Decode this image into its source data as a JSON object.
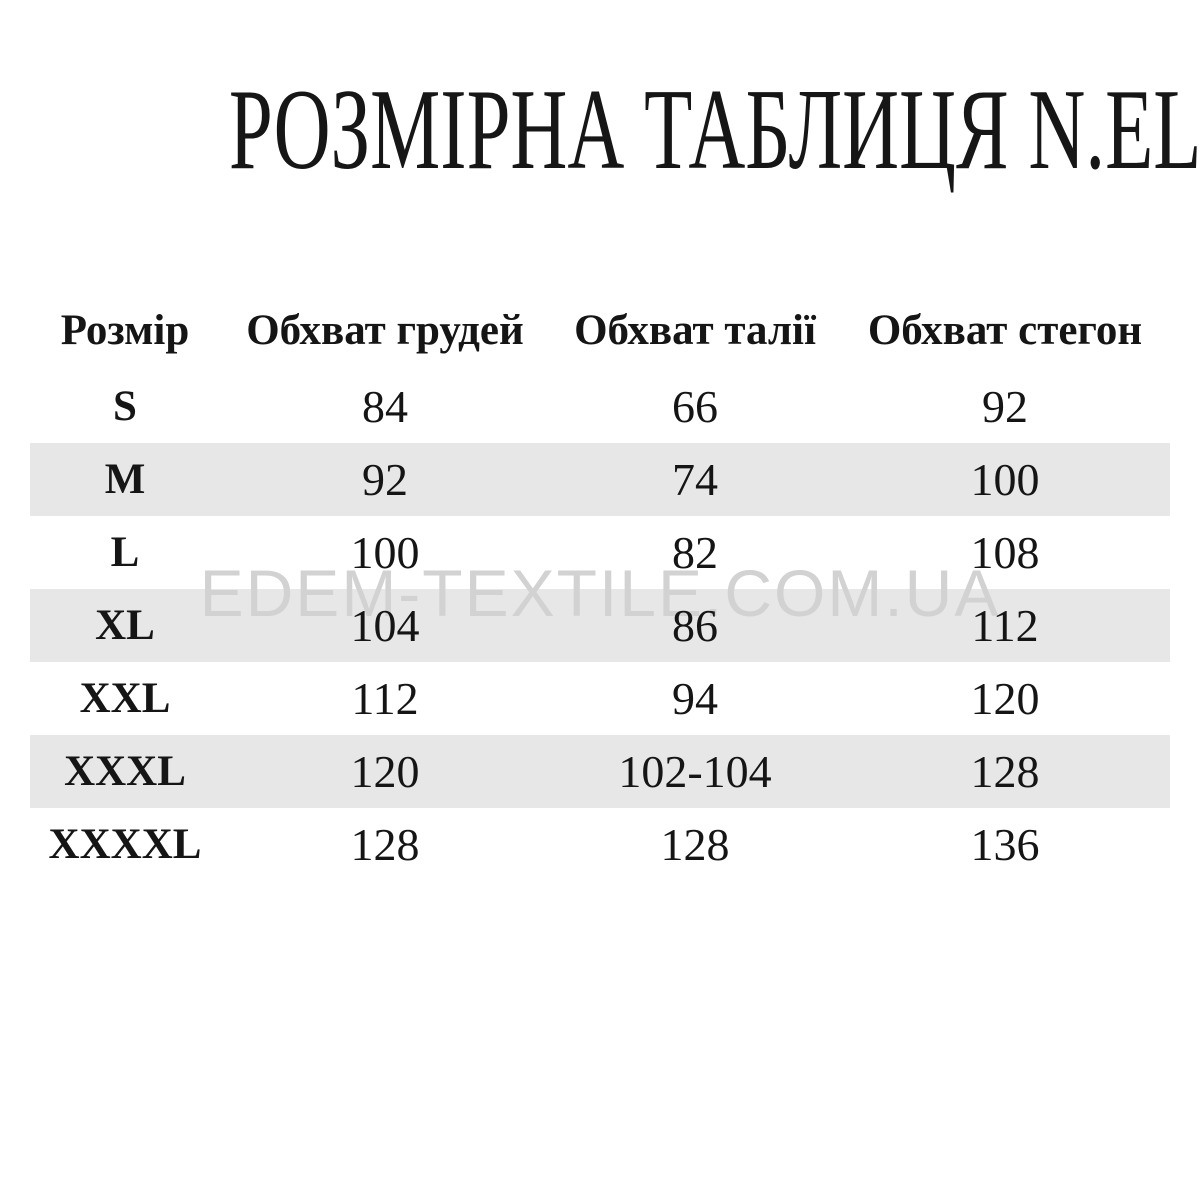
{
  "title": "РОЗМІРНА ТАБЛИЦЯ N.EL",
  "watermark": "EDEM-TEXTILE.COM.UA",
  "colors": {
    "background": "#ffffff",
    "text": "#151515",
    "shaded_row": "#e7e7e7",
    "watermark": "#d2d2d2"
  },
  "table": {
    "columns": [
      "Розмір",
      "Обхват грудей",
      "Обхват талії",
      "Обхват стегон"
    ],
    "rows": [
      {
        "size": "S",
        "chest": "84",
        "waist": "66",
        "hips": "92"
      },
      {
        "size": "M",
        "chest": "92",
        "waist": "74",
        "hips": "100"
      },
      {
        "size": "L",
        "chest": "100",
        "waist": "82",
        "hips": "108"
      },
      {
        "size": "XL",
        "chest": "104",
        "waist": "86",
        "hips": "112"
      },
      {
        "size": "XXL",
        "chest": "112",
        "waist": "94",
        "hips": "120"
      },
      {
        "size": "XXXL",
        "chest": "120",
        "waist": "102-104",
        "hips": "128"
      },
      {
        "size": "XXXXL",
        "chest": "128",
        "waist": "128",
        "hips": "136"
      }
    ]
  }
}
